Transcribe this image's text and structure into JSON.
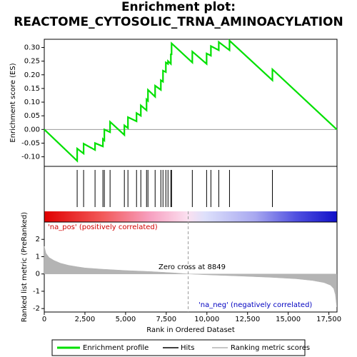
{
  "chart_data": [
    {
      "type": "line",
      "title": "Enrichment plot: REACTOME_CYTOSOLIC_TRNA_AMINOACYLATION",
      "ylabel": "Enrichment score (ES)",
      "xlim": [
        0,
        18000
      ],
      "ylim": [
        -0.135,
        0.33
      ],
      "yticks": [
        {
          "value": -0.1,
          "label": "-0.10"
        },
        {
          "value": -0.05,
          "label": "-0.05"
        },
        {
          "value": 0,
          "label": "0.00"
        },
        {
          "value": 0.05,
          "label": "0.05"
        },
        {
          "value": 0.1,
          "label": "0.10"
        },
        {
          "value": 0.15,
          "label": "0.15"
        },
        {
          "value": 0.2,
          "label": "0.20"
        },
        {
          "value": 0.25,
          "label": "0.25"
        },
        {
          "value": 0.3,
          "label": "0.30"
        }
      ],
      "series": [
        {
          "name": "Enrichment profile",
          "color": "#00e000",
          "x": [
            0,
            2023,
            2023,
            2419,
            2419,
            3122,
            3122,
            3606,
            3606,
            3694,
            3694,
            4046,
            4046,
            4925,
            4925,
            5145,
            5145,
            5673,
            5673,
            5937,
            5937,
            6289,
            6289,
            6376,
            6376,
            6816,
            6816,
            7168,
            7168,
            7300,
            7300,
            7476,
            7476,
            7608,
            7608,
            7784,
            7784,
            7828,
            7828,
            9103,
            9103,
            9982,
            9982,
            10246,
            10246,
            10730,
            10730,
            11390,
            11390,
            14028,
            14028,
            17985
          ],
          "values": [
            0,
            -0.115,
            -0.07,
            -0.088,
            -0.052,
            -0.075,
            -0.05,
            -0.062,
            -0.035,
            -0.04,
            0.0,
            -0.01,
            0.028,
            -0.02,
            0.015,
            0.005,
            0.045,
            0.03,
            0.06,
            0.05,
            0.088,
            0.07,
            0.11,
            0.105,
            0.145,
            0.12,
            0.16,
            0.145,
            0.18,
            0.175,
            0.215,
            0.21,
            0.245,
            0.24,
            0.25,
            0.24,
            0.275,
            0.275,
            0.315,
            0.245,
            0.285,
            0.24,
            0.278,
            0.27,
            0.305,
            0.29,
            0.32,
            0.29,
            0.325,
            0.18,
            0.22,
            0.0
          ]
        }
      ]
    },
    {
      "type": "hits",
      "name": "Hits",
      "color": "#000000",
      "xlim": [
        0,
        18000
      ],
      "x": [
        2023,
        2419,
        3122,
        3606,
        3694,
        4046,
        4925,
        5145,
        5673,
        5937,
        6289,
        6376,
        6816,
        7168,
        7300,
        7476,
        7608,
        7784,
        7828,
        9103,
        9982,
        10246,
        10730,
        11390,
        14028
      ]
    },
    {
      "type": "area",
      "ylabel": "Ranked list metric (PreRanked)",
      "xlabel": "Rank in Ordered Dataset",
      "xlim": [
        0,
        18000
      ],
      "ylim": [
        -2.2,
        3.0
      ],
      "yticks": [
        -2,
        -1,
        0,
        1,
        2
      ],
      "xticks": [
        0,
        {
          "value": 2500,
          "label": "2,500"
        },
        {
          "value": 5000,
          "label": "5,000"
        },
        {
          "value": 7500,
          "label": "7,500"
        },
        {
          "value": 10000,
          "label": "10,000"
        },
        {
          "value": 12500,
          "label": "12,500"
        },
        {
          "value": 15000,
          "label": "15,000"
        },
        {
          "value": 17500,
          "label": "17,500"
        }
      ],
      "zero_cross": 8849,
      "annotations": [
        "'na_pos' (positively correlated)",
        "Zero cross at 8849",
        "'na_neg' (negatively correlated)"
      ],
      "series": [
        {
          "name": "Ranking metric scores",
          "color": "#b4b4b4",
          "x": [
            0,
            100,
            300,
            600,
            1000,
            1500,
            2000,
            2500,
            3500,
            5000,
            6500,
            8000,
            8849,
            10000,
            12000,
            14000,
            15500,
            16500,
            17200,
            17600,
            17800,
            17900,
            17985
          ],
          "values": [
            1.6,
            1.2,
            0.95,
            0.78,
            0.62,
            0.5,
            0.42,
            0.35,
            0.28,
            0.2,
            0.14,
            0.06,
            0,
            -0.05,
            -0.12,
            -0.2,
            -0.28,
            -0.38,
            -0.5,
            -0.65,
            -0.85,
            -1.2,
            -1.9
          ]
        }
      ]
    }
  ]
}
